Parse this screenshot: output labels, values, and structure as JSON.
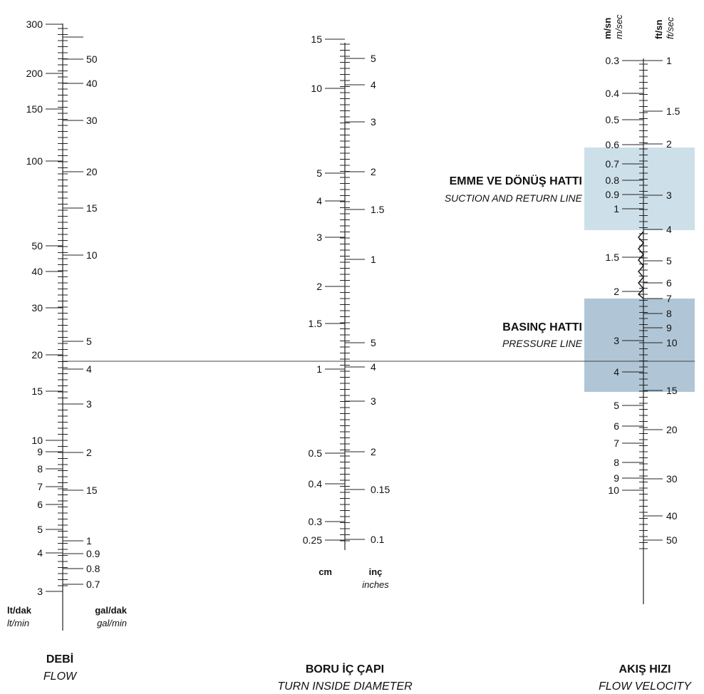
{
  "scales": {
    "flow": {
      "left_unit": "lt/dak",
      "left_unit_en": "lt/min",
      "right_unit": "gal/dak",
      "right_unit_en": "gal/min",
      "title": "DEBİ",
      "title_en": "FLOW",
      "left_labels": [
        "300",
        "200",
        "150",
        "100",
        "50",
        "40",
        "30",
        "20",
        "15",
        "10",
        "9",
        "8",
        "7",
        "6",
        "5",
        "4",
        "3"
      ],
      "right_labels": [
        "50",
        "40",
        "30",
        "20",
        "15",
        "10",
        "5",
        "4",
        "3",
        "2",
        "15",
        "1",
        "0.9",
        "0.8",
        "0.7"
      ]
    },
    "diameter": {
      "left_unit": "cm",
      "right_unit": "inç",
      "right_unit_en": "inches",
      "title": "BORU İÇ ÇAPI",
      "title_en": "TURN INSIDE DIAMETER",
      "left_labels": [
        "15",
        "10",
        "5",
        "4",
        "3",
        "2",
        "1.5",
        "1",
        "0.5",
        "0.4",
        "0.3",
        "0.25"
      ],
      "right_labels": [
        "5",
        "4",
        "3",
        "2",
        "1.5",
        "1",
        "5",
        "4",
        "3",
        "2",
        "0.15",
        "0.1"
      ]
    },
    "velocity": {
      "left_unit": "m/sn",
      "left_unit_en": "m/sec",
      "right_unit": "ft/sn",
      "right_unit_en": "ft/sec",
      "title": "AKIŞ HIZI",
      "title_en": "FLOW VELOCITY",
      "left_labels": [
        "0.3",
        "0.4",
        "0.5",
        "0.6",
        "0.7",
        "0.8",
        "0.9",
        "1",
        "1.5",
        "2",
        "3",
        "4",
        "5",
        "6",
        "7",
        "8",
        "9",
        "10"
      ],
      "right_labels": [
        "1",
        "1.5",
        "2",
        "3",
        "4",
        "5",
        "6",
        "7",
        "8",
        "9",
        "10",
        "15",
        "20",
        "30",
        "40",
        "50"
      ]
    }
  },
  "zones": {
    "suction": {
      "label": "EMME VE DÖNÜŞ HATTI",
      "label_en": "SUCTION AND RETURN LINE",
      "color": "#cde0ea"
    },
    "pressure": {
      "label": "BASINÇ HATTI",
      "label_en": "PRESSURE LINE",
      "color": "#b0c6d6"
    }
  }
}
